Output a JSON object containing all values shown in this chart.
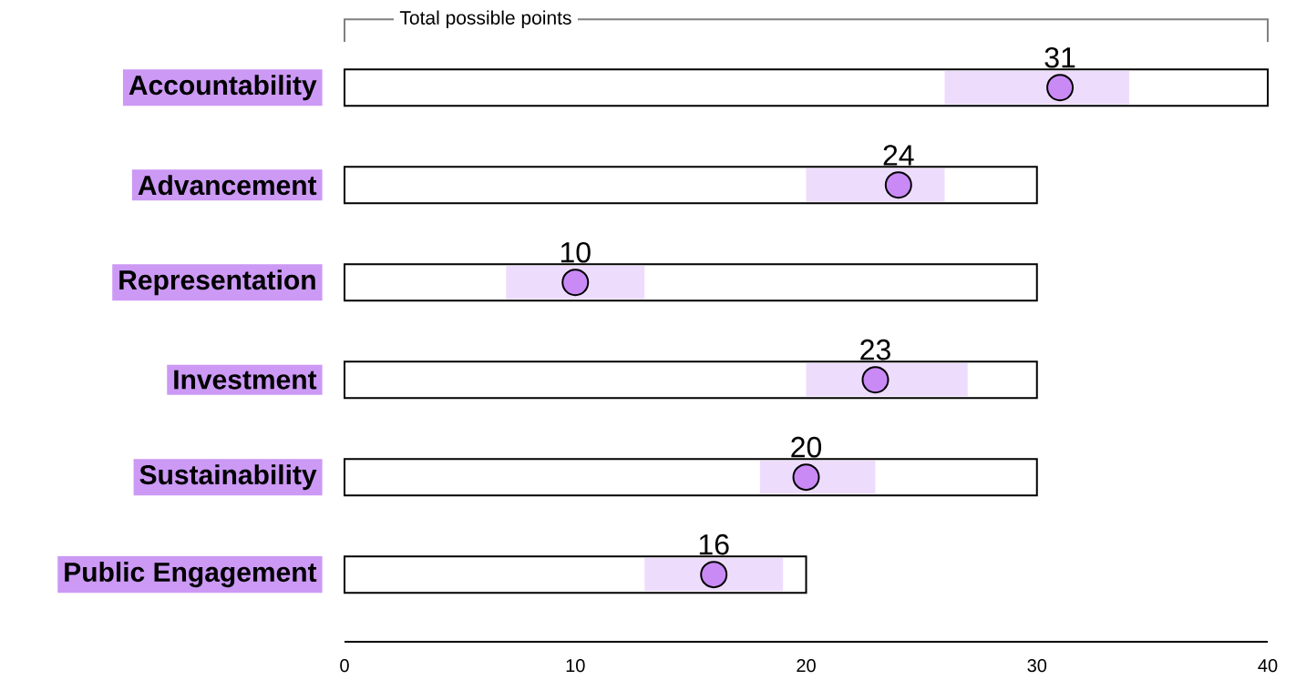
{
  "chart_data": {
    "type": "bar",
    "orientation": "horizontal",
    "categories": [
      "Accountability",
      "Advancement",
      "Representation",
      "Investment",
      "Sustainability",
      "Public Engagement"
    ],
    "series": [
      {
        "type": "bar",
        "color": "#ffffff",
        "values": [
          40,
          30,
          30,
          30,
          30,
          20
        ]
      },
      {
        "type": "bar",
        "color": "#eedcfd",
        "base": [
          26,
          20,
          7,
          20,
          18,
          13
        ],
        "values": [
          8,
          6,
          6,
          7,
          5,
          6
        ]
      },
      {
        "type": "scatter",
        "color": "#c98af5",
        "values": [
          31,
          24,
          10,
          23,
          20,
          16
        ],
        "value_labels": [
          "31",
          "24",
          "10",
          "23",
          "20",
          "16"
        ]
      }
    ],
    "marker": "circle",
    "xlim": [
      0,
      40
    ],
    "xticks": [
      0,
      10,
      20,
      30,
      40
    ],
    "grid": false,
    "annotations": [
      "Total possible points"
    ]
  }
}
